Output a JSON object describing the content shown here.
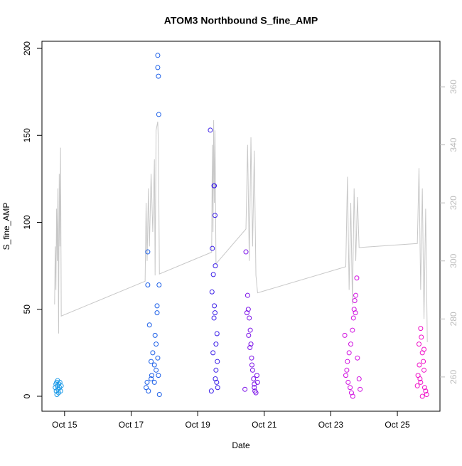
{
  "chart_data": {
    "type": "scatter",
    "title": "ATOM3 Northbound S_fine_AMP",
    "xlabel": "Date",
    "ylabel": "S_fine_AMP",
    "xlim": [
      14.32,
      26.28
    ],
    "ylim": [
      -8.6,
      204.1
    ],
    "y2lim": [
      248.2,
      375.7
    ],
    "xticks": [
      {
        "value": 15,
        "label": "Oct 15"
      },
      {
        "value": 17,
        "label": "Oct 17"
      },
      {
        "value": 19,
        "label": "Oct 19"
      },
      {
        "value": 21,
        "label": "Oct 21"
      },
      {
        "value": 23,
        "label": "Oct 23"
      },
      {
        "value": 25,
        "label": "Oct 25"
      }
    ],
    "yticks": [
      0,
      50,
      100,
      150,
      200
    ],
    "y2ticks": [
      260,
      280,
      300,
      320,
      340,
      360
    ],
    "series": [
      {
        "color": "#1e9be8",
        "x": [
          14.72,
          14.74,
          14.75,
          14.76,
          14.78,
          14.79,
          14.8,
          14.82,
          14.83,
          14.85,
          14.86,
          14.88,
          14.9,
          14.77,
          14.81
        ],
        "values": [
          5,
          7,
          3,
          8,
          6,
          9,
          4,
          2,
          7,
          5,
          8,
          3,
          6,
          1,
          4
        ]
      },
      {
        "color": "#1a5ee8",
        "x": [
          17.45,
          17.5,
          17.5,
          17.55,
          17.6,
          17.62,
          17.65,
          17.7,
          17.72,
          17.75,
          17.78,
          17.8,
          17.8,
          17.82,
          17.83,
          17.84,
          17.85,
          17.8,
          17.78,
          17.6,
          17.52,
          17.7,
          17.75,
          17.82,
          17.48
        ],
        "values": [
          5,
          83,
          64,
          41,
          20,
          12,
          25,
          8,
          35,
          15,
          52,
          196,
          189,
          184,
          162,
          64,
          1,
          22,
          48,
          10,
          3,
          18,
          30,
          12,
          8
        ]
      },
      {
        "color": "#3a1ee8",
        "x": [
          19.38,
          19.49,
          19.5,
          19.52,
          19.53,
          19.47,
          19.5,
          19.52,
          19.55,
          19.55,
          19.58,
          19.6,
          19.43,
          19.46,
          19.53,
          19.57,
          19.41,
          19.49,
          19.59,
          19.44
        ],
        "values": [
          153,
          121,
          121,
          104,
          75,
          70,
          52,
          48,
          30,
          15,
          36,
          5,
          60,
          25,
          10,
          8,
          3,
          45,
          20,
          85
        ]
      },
      {
        "color": "#7a10e8",
        "x": [
          20.45,
          20.5,
          20.52,
          20.55,
          20.58,
          20.6,
          20.62,
          20.65,
          20.68,
          20.7,
          20.72,
          20.75,
          20.48,
          20.53,
          20.78,
          20.8,
          20.42,
          20.57,
          20.63,
          20.7
        ],
        "values": [
          83,
          58,
          50,
          45,
          38,
          30,
          22,
          15,
          10,
          5,
          3,
          2,
          48,
          35,
          12,
          8,
          4,
          28,
          18,
          7
        ]
      },
      {
        "color": "#d010e0",
        "x": [
          23.78,
          23.75,
          23.72,
          23.7,
          23.68,
          23.65,
          23.6,
          23.55,
          23.5,
          23.48,
          23.45,
          23.52,
          23.58,
          23.62,
          23.66,
          23.74,
          23.8,
          23.85,
          23.88,
          23.42
        ],
        "values": [
          68,
          58,
          55,
          50,
          45,
          38,
          30,
          25,
          20,
          15,
          12,
          8,
          5,
          2,
          0,
          48,
          22,
          10,
          4,
          35
        ]
      },
      {
        "color": "#f010c8",
        "x": [
          25.7,
          25.72,
          25.65,
          25.75,
          25.78,
          25.8,
          25.62,
          25.68,
          25.7,
          25.82,
          25.85,
          25.88,
          25.75,
          25.66,
          25.6,
          25.8
        ],
        "values": [
          39,
          34,
          30,
          25,
          20,
          15,
          12,
          10,
          8,
          5,
          3,
          1,
          0,
          18,
          6,
          27
        ]
      },
      {
        "type": "line",
        "axis": "y2",
        "color": "#c8c8c8",
        "x": [
          14.7,
          14.72,
          14.74,
          14.76,
          14.78,
          14.8,
          14.82,
          14.84,
          14.86,
          14.88,
          14.9,
          17.42,
          17.45,
          17.48,
          17.52,
          17.55,
          17.6,
          17.65,
          17.7,
          17.72,
          17.75,
          17.8,
          17.82,
          17.85,
          19.42,
          19.44,
          19.46,
          19.48,
          19.5,
          19.52,
          19.55,
          20.45,
          20.5,
          20.55,
          20.6,
          20.65,
          20.7,
          20.75,
          20.8,
          23.45,
          23.5,
          23.55,
          23.6,
          23.65,
          23.7,
          23.75,
          23.8,
          23.85,
          25.6,
          25.65,
          25.7,
          25.75,
          25.8,
          25.85,
          25.9
        ],
        "values": [
          285,
          305,
          290,
          318,
          300,
          325,
          275,
          330,
          305,
          339,
          281,
          293,
          320,
          300,
          325,
          305,
          330,
          310,
          335,
          295,
          345,
          348,
          340,
          295.5,
          303,
          340,
          310,
          348.5,
          320,
          345,
          299,
          311,
          340,
          300,
          342.6,
          305,
          338,
          295,
          289,
          298,
          329,
          290,
          320,
          285,
          325,
          300,
          322,
          304.6,
          306,
          332,
          290,
          325,
          280,
          318,
          272
        ]
      }
    ]
  }
}
